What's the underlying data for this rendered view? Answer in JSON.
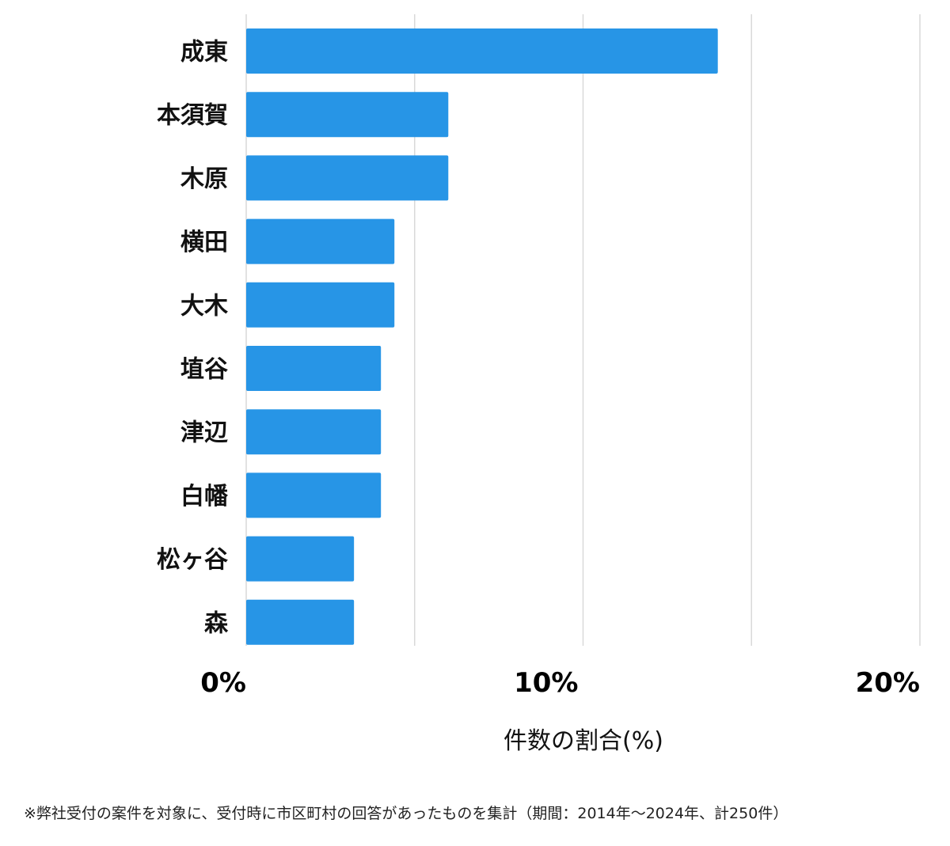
{
  "chart_data": {
    "type": "bar",
    "orientation": "horizontal",
    "categories": [
      "成東",
      "本須賀",
      "木原",
      "横田",
      "大木",
      "埴谷",
      "津辺",
      "白幡",
      "松ヶ谷",
      "森"
    ],
    "values": [
      14.0,
      6.0,
      6.0,
      4.4,
      4.4,
      4.0,
      4.0,
      4.0,
      3.2,
      3.2
    ],
    "xlim": [
      0,
      20
    ],
    "xticks": [
      0,
      10,
      20
    ],
    "xtick_labels": [
      "0%",
      "10%",
      "20%"
    ],
    "xlabel": "件数の割合(%)",
    "grid": true,
    "bar_color": "#2795e6",
    "grid_color": "#d9d9d9"
  },
  "footnote": "※弊社受付の案件を対象に、受付時に市区町村の回答があったものを集計（期間：2014年〜2024年、計250件）"
}
